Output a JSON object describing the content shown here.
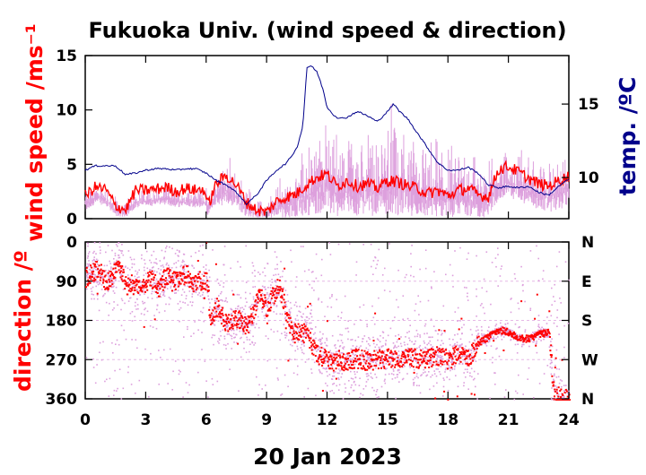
{
  "title": "Fukuoka Univ. (wind speed & direction)",
  "xlabel": "20 Jan 2023",
  "colors": {
    "speed_raw": "#dda0dd",
    "speed_avg": "#ff0000",
    "temperature": "#00008b",
    "direction_raw": "#dda0dd",
    "direction_avg": "#ff0000"
  },
  "chart_data": [
    {
      "type": "line",
      "panel": "top",
      "ylabel": "wind speed /ms⁻¹",
      "y2label": "temp. /ºC",
      "xlim": [
        0,
        24
      ],
      "xticks": [
        "0",
        "3",
        "6",
        "9",
        "12",
        "15",
        "18",
        "21",
        "24"
      ],
      "ylim": [
        0,
        15
      ],
      "yticks": [
        "0",
        "5",
        "10",
        "15"
      ],
      "y2lim": [
        7.2,
        18.3
      ],
      "y2ticks": [
        "10",
        "15"
      ],
      "series": [
        {
          "key": "wind_speed_average",
          "x": [
            0,
            0.5,
            1,
            1.5,
            2,
            2.5,
            3,
            3.5,
            4,
            4.5,
            5,
            5.5,
            5.9,
            6.1,
            6.5,
            7,
            7.5,
            8,
            8.5,
            9,
            9.5,
            10,
            10.5,
            11,
            11.5,
            12,
            12.5,
            13,
            13.5,
            14,
            14.5,
            15,
            15.5,
            16,
            16.5,
            17,
            17.5,
            18,
            18.5,
            19,
            19.5,
            20,
            20.5,
            21,
            21.5,
            22,
            22.5,
            23,
            23.5,
            24
          ],
          "y": [
            2.1,
            2.9,
            2.7,
            1.2,
            0.8,
            2.6,
            2.6,
            2.7,
            2.9,
            2.5,
            2.8,
            2.6,
            2.7,
            1.2,
            3.2,
            4.0,
            3.1,
            1.5,
            0.8,
            0.6,
            1.6,
            2.0,
            2.3,
            3.2,
            3.8,
            4.1,
            3.0,
            3.5,
            3.0,
            3.2,
            2.8,
            3.5,
            3.4,
            3.0,
            2.8,
            2.3,
            2.6,
            2.1,
            2.6,
            2.8,
            2.2,
            2.0,
            4.5,
            4.8,
            4.3,
            3.7,
            3.2,
            3.0,
            3.5,
            3.9
          ]
        },
        {
          "key": "wind_speed_raw_max",
          "x": [
            0,
            0.5,
            1,
            1.5,
            2,
            2.5,
            3,
            3.5,
            4,
            4.5,
            5,
            5.5,
            5.9,
            6.1,
            6.5,
            7,
            7.5,
            8,
            8.5,
            9,
            9.5,
            10,
            10.5,
            11,
            11.5,
            12,
            12.5,
            13,
            13.5,
            14,
            14.5,
            15,
            15.5,
            16,
            16.5,
            17,
            17.5,
            18,
            18.5,
            19,
            19.5,
            20,
            20.5,
            21,
            21.5,
            22,
            22.5,
            23,
            23.5,
            24
          ],
          "y": [
            3.0,
            3.3,
            3.1,
            2.2,
            1.6,
            2.9,
            3.0,
            3.0,
            3.1,
            2.9,
            3.0,
            2.9,
            3.0,
            2.4,
            4.6,
            5.6,
            4.4,
            3.2,
            1.8,
            1.4,
            3.4,
            4.6,
            5.4,
            6.8,
            8.6,
            9.2,
            8.2,
            8.6,
            8.4,
            8.2,
            7.6,
            9.8,
            10.2,
            8.6,
            7.2,
            6.8,
            7.4,
            6.2,
            6.8,
            7.0,
            5.8,
            5.2,
            6.6,
            6.8,
            6.4,
            6.0,
            5.6,
            5.4,
            6.2,
            7.4
          ]
        },
        {
          "key": "wind_speed_raw_min",
          "x": [
            0,
            0.5,
            1,
            1.5,
            2,
            2.5,
            3,
            3.5,
            4,
            4.5,
            5,
            5.5,
            5.9,
            6.1,
            6.5,
            7,
            7.5,
            8,
            8.5,
            9,
            9.5,
            10,
            10.5,
            11,
            11.5,
            12,
            12.5,
            13,
            13.5,
            14,
            14.5,
            15,
            15.5,
            16,
            16.5,
            17,
            17.5,
            18,
            18.5,
            19,
            19.5,
            20,
            20.5,
            21,
            21.5,
            22,
            22.5,
            23,
            23.5,
            24
          ],
          "y": [
            0.6,
            1.4,
            1.2,
            0.2,
            0.1,
            1.0,
            1.1,
            1.2,
            1.3,
            1.0,
            1.2,
            1.0,
            1.1,
            0.2,
            1.0,
            1.4,
            1.0,
            0.2,
            0.1,
            0.1,
            0.1,
            0.1,
            0.2,
            0.3,
            0.4,
            0.5,
            0.2,
            0.4,
            0.2,
            0.3,
            0.2,
            0.4,
            0.3,
            0.3,
            0.2,
            0.1,
            0.2,
            0.1,
            0.2,
            0.3,
            0.1,
            0.1,
            1.6,
            2.0,
            1.6,
            1.2,
            0.8,
            0.6,
            0.8,
            1.0
          ]
        },
        {
          "key": "temperature",
          "axis": "right",
          "x": [
            0,
            0.5,
            1,
            1.5,
            2,
            2.5,
            3,
            3.5,
            4,
            4.5,
            5,
            5.5,
            6,
            6.5,
            7,
            7.5,
            8,
            8.5,
            9,
            9.5,
            10,
            10.5,
            10.8,
            11,
            11.2,
            11.5,
            11.8,
            12,
            12.3,
            12.6,
            13,
            13.5,
            14,
            14.5,
            15,
            15.3,
            15.6,
            16,
            16.5,
            17,
            17.5,
            18,
            18.5,
            19,
            19.5,
            20,
            20.5,
            21,
            21.5,
            22,
            22.5,
            23,
            23.5,
            24
          ],
          "y": [
            10.5,
            10.8,
            10.8,
            10.8,
            10.2,
            10.3,
            10.5,
            10.6,
            10.6,
            10.5,
            10.6,
            10.6,
            10.3,
            9.8,
            9.5,
            9.0,
            8.2,
            8.8,
            9.8,
            10.5,
            11.0,
            12.0,
            13.5,
            17.5,
            17.6,
            17.2,
            16.0,
            14.8,
            14.3,
            14.0,
            14.1,
            14.5,
            14.2,
            13.8,
            14.5,
            15.0,
            14.5,
            14.0,
            13.0,
            12.0,
            11.0,
            10.5,
            10.5,
            10.7,
            10.3,
            9.5,
            9.3,
            9.4,
            9.3,
            9.4,
            9.0,
            8.8,
            9.4,
            9.9
          ]
        }
      ]
    },
    {
      "type": "scatter",
      "panel": "bottom",
      "ylabel": "direction /º",
      "xlim": [
        0,
        24
      ],
      "xticks": [
        "0",
        "3",
        "6",
        "9",
        "12",
        "15",
        "18",
        "21",
        "24"
      ],
      "ylim": [
        0,
        360
      ],
      "y_inverted": true,
      "yticks": [
        "0",
        "90",
        "180",
        "270",
        "360"
      ],
      "y2ticks": [
        "N",
        "E",
        "S",
        "W",
        "N"
      ],
      "grid": "horizontal dashed",
      "series": [
        {
          "key": "direction_average",
          "x": [
            0,
            0.3,
            0.6,
            1,
            1.3,
            1.6,
            2,
            2.3,
            2.6,
            3,
            3.3,
            3.6,
            4,
            4.3,
            4.6,
            5,
            5.3,
            5.6,
            6,
            6.2,
            6.5,
            7,
            7.5,
            8,
            8.3,
            8.6,
            9,
            9.3,
            9.6,
            10,
            10.3,
            10.6,
            11,
            11.5,
            12,
            12.5,
            13,
            13.5,
            14,
            14.5,
            15,
            15.5,
            16,
            16.5,
            17,
            17.5,
            18,
            18.5,
            19,
            19.5,
            20,
            20.5,
            21,
            21.5,
            22,
            22.5,
            23,
            23.2,
            23.5,
            24
          ],
          "y": [
            80,
            70,
            60,
            90,
            80,
            50,
            100,
            95,
            110,
            90,
            85,
            105,
            75,
            90,
            80,
            70,
            95,
            85,
            90,
            180,
            150,
            185,
            175,
            190,
            160,
            120,
            150,
            120,
            100,
            170,
            210,
            200,
            215,
            255,
            270,
            275,
            270,
            265,
            272,
            268,
            265,
            270,
            262,
            268,
            265,
            260,
            270,
            255,
            265,
            230,
            215,
            200,
            205,
            220,
            220,
            210,
            205,
            340,
            355,
            360
          ]
        }
      ]
    }
  ]
}
